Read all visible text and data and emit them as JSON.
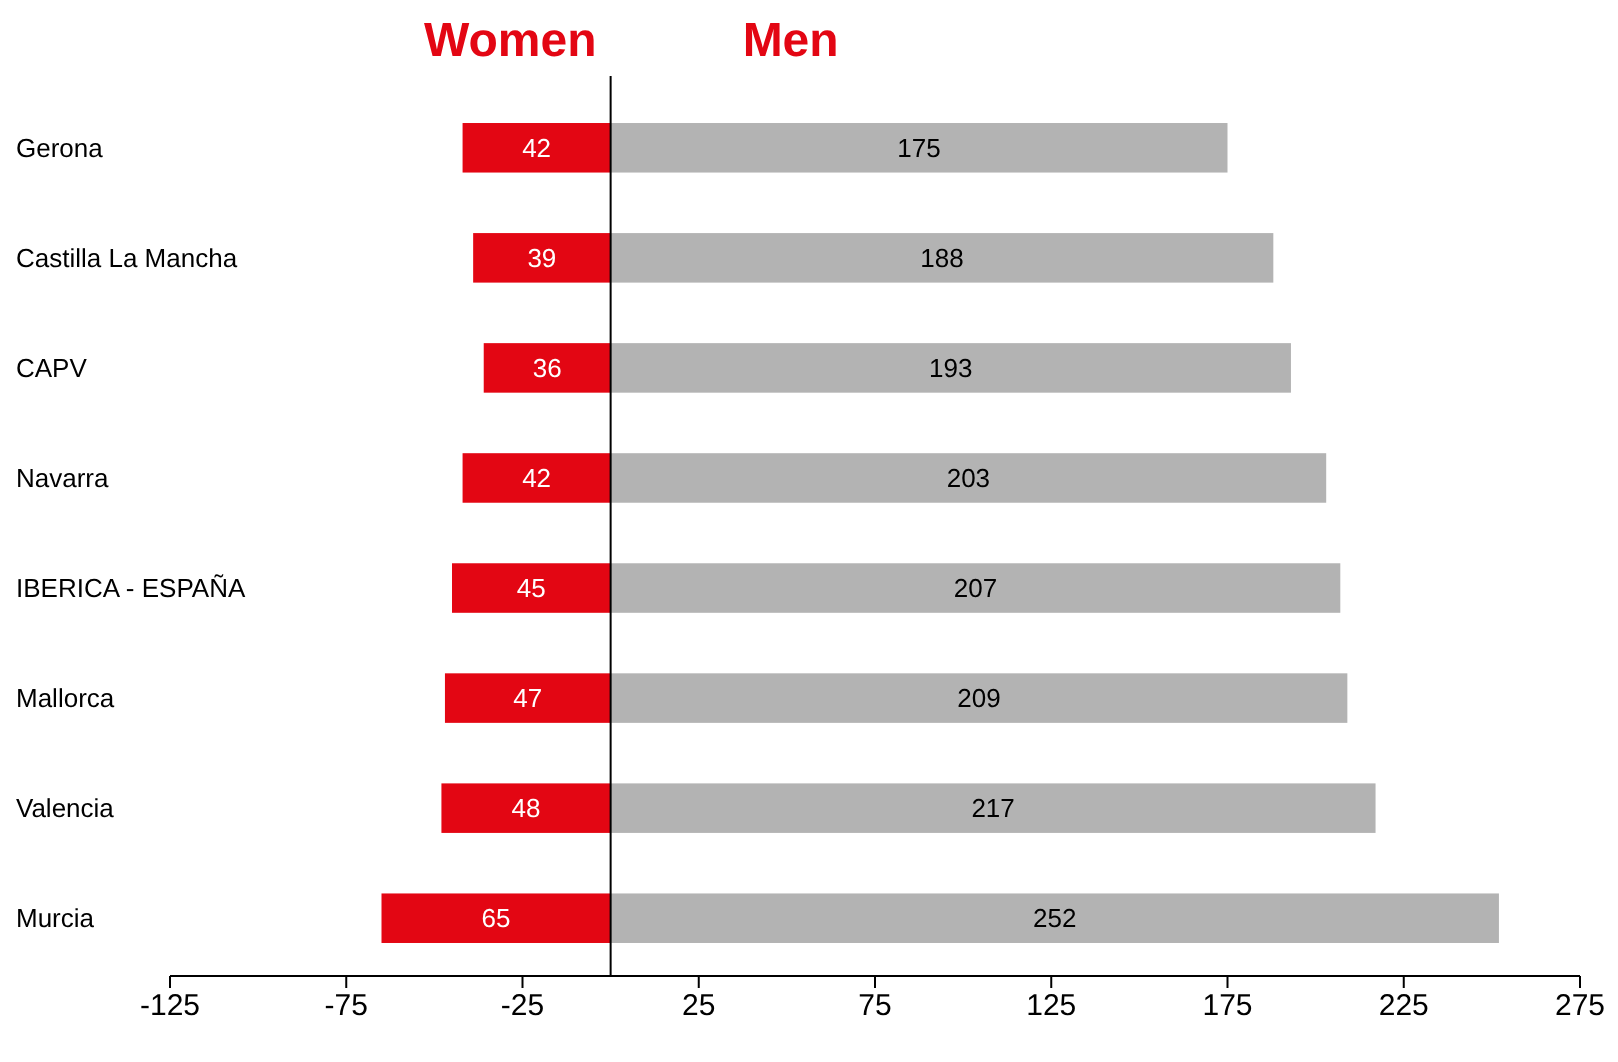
{
  "chart_data": {
    "type": "bar",
    "orientation": "horizontal",
    "categories": [
      "Gerona",
      "Castilla La Mancha",
      "CAPV",
      "Navarra",
      "IBERICA - ESPAÑA",
      "Mallorca",
      "Valencia",
      "Murcia"
    ],
    "series": [
      {
        "name": "Women",
        "color": "#e30613",
        "values": [
          42,
          39,
          36,
          42,
          45,
          47,
          48,
          65
        ],
        "base": [
          -42,
          -39,
          -36,
          -42,
          -45,
          -47,
          -48,
          -65
        ],
        "value_labels": [
          "42",
          "39",
          "36",
          "42",
          "45",
          "47",
          "48",
          "65"
        ]
      },
      {
        "name": "Men",
        "color": "#b3b3b3",
        "values": [
          175,
          188,
          193,
          203,
          207,
          209,
          217,
          252
        ],
        "value_labels": [
          "175",
          "188",
          "193",
          "203",
          "207",
          "209",
          "217",
          "252"
        ]
      }
    ],
    "xlim": [
      -125,
      275
    ],
    "xticks": [
      -125,
      -75,
      -25,
      25,
      75,
      125,
      175,
      225,
      275
    ],
    "grid": false
  }
}
